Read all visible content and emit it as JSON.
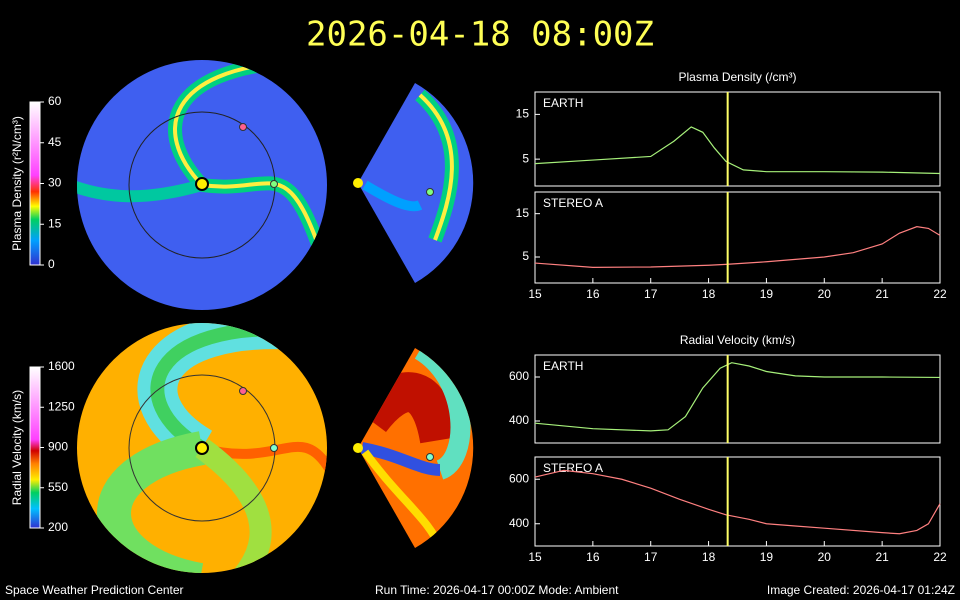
{
  "header": {
    "title": "2026-04-18  08:00Z"
  },
  "colorbars": [
    {
      "label": "Plasma Density (r²N/cm³)",
      "lim": [
        0,
        60
      ],
      "ticks": [
        0,
        15,
        30,
        45,
        60
      ]
    },
    {
      "label": "Radial Velocity (km/s)",
      "lim": [
        200,
        1600
      ],
      "ticks": [
        200,
        550,
        900,
        1250,
        1600
      ]
    }
  ],
  "chart_data": [
    {
      "type": "line",
      "title": "Plasma Density (/cm³)",
      "x": [
        15,
        16,
        17,
        17.4,
        17.7,
        17.9,
        18.1,
        18.3,
        18.6,
        19,
        20,
        21,
        22
      ],
      "series": [
        {
          "name": "EARTH",
          "color": "#a6f07a",
          "values": [
            4,
            4.8,
            5.6,
            9,
            12.2,
            11,
            7.5,
            4.5,
            2.6,
            2.2,
            2.2,
            2.1,
            1.8
          ]
        }
      ],
      "xlim": [
        15,
        22
      ],
      "ylim": [
        -1,
        20
      ],
      "yticks": [
        5,
        15
      ],
      "cursor_x": 18.33,
      "cursor_color": "#ffff66"
    },
    {
      "type": "line",
      "x": [
        15,
        16,
        17,
        18,
        18.3,
        19,
        20,
        20.5,
        21,
        21.3,
        21.6,
        21.8,
        22
      ],
      "series": [
        {
          "name": "STEREO A",
          "color": "#ff8080",
          "values": [
            3.6,
            2.6,
            2.7,
            3.1,
            3.3,
            3.9,
            5,
            6,
            8,
            10.5,
            12,
            11.6,
            10
          ]
        }
      ],
      "xlim": [
        15,
        22
      ],
      "xticks": [
        15,
        16,
        17,
        18,
        19,
        20,
        21,
        22
      ],
      "ylim": [
        -1,
        20
      ],
      "yticks": [
        5,
        15
      ],
      "cursor_x": 18.33,
      "cursor_color": "#ffff66"
    },
    {
      "type": "line",
      "title": "Radial Velocity (km/s)",
      "x": [
        15,
        16,
        17,
        17.3,
        17.6,
        17.9,
        18.2,
        18.4,
        18.7,
        19,
        19.5,
        20,
        21,
        22
      ],
      "series": [
        {
          "name": "EARTH",
          "color": "#a6f07a",
          "values": [
            390,
            365,
            355,
            360,
            420,
            550,
            640,
            665,
            650,
            625,
            605,
            600,
            600,
            598
          ]
        }
      ],
      "xlim": [
        15,
        22
      ],
      "ylim": [
        300,
        700
      ],
      "yticks": [
        400,
        600
      ],
      "cursor_x": 18.33,
      "cursor_color": "#ffff66"
    },
    {
      "type": "line",
      "x": [
        15,
        15.5,
        16,
        16.5,
        17,
        17.5,
        18,
        18.3,
        18.7,
        19,
        19.5,
        20,
        21,
        21.3,
        21.6,
        21.8,
        22
      ],
      "series": [
        {
          "name": "STEREO A",
          "color": "#ff8080",
          "values": [
            610,
            640,
            625,
            600,
            560,
            510,
            465,
            440,
            420,
            400,
            390,
            380,
            360,
            355,
            370,
            400,
            490
          ]
        }
      ],
      "xlim": [
        15,
        22
      ],
      "xticks": [
        15,
        16,
        17,
        18,
        19,
        20,
        21,
        22
      ],
      "ylim": [
        300,
        700
      ],
      "yticks": [
        400,
        600
      ],
      "cursor_x": 18.33,
      "cursor_color": "#ffff66"
    }
  ],
  "footer": {
    "left": "Space Weather Prediction Center",
    "center": "Run Time: 2026-04-17 00:00Z  Mode: Ambient",
    "right": "Image Created: 2026-04-17 01:24Z"
  }
}
